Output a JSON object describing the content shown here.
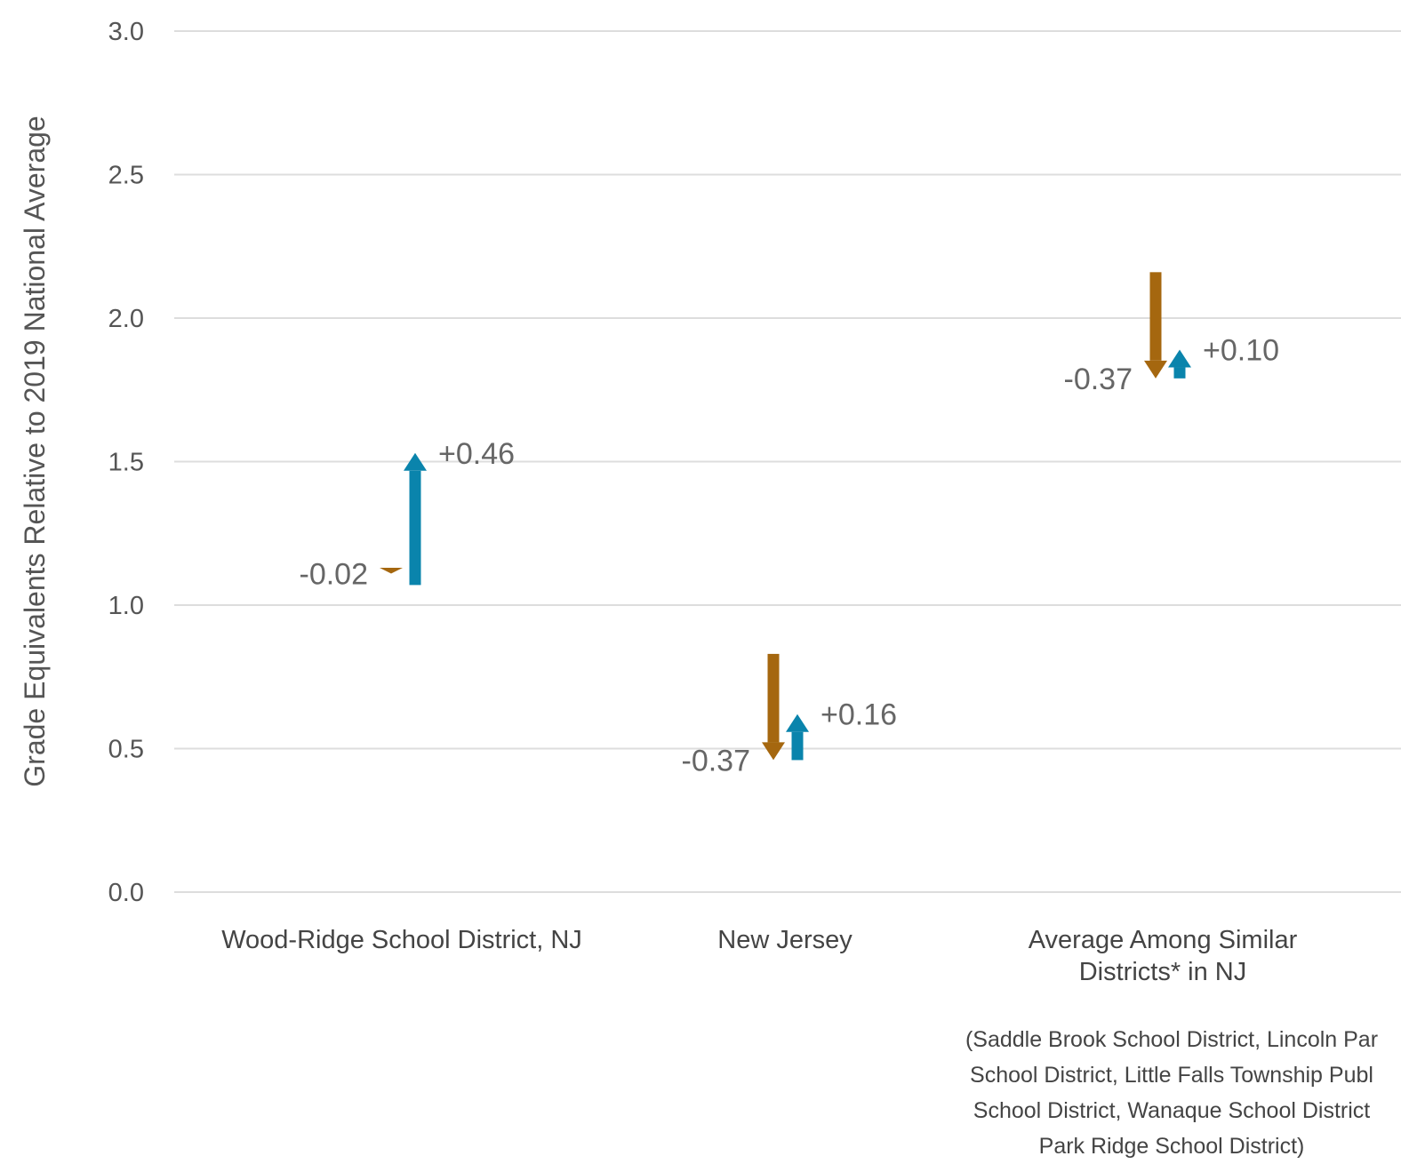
{
  "chart_data": {
    "type": "arrow",
    "ylabel": "Grade Equivalents Relative to 2019 National Average",
    "ylim": [
      0,
      3
    ],
    "yticks": [
      0,
      0.5,
      1,
      1.5,
      2,
      2.5,
      3
    ],
    "ytick_labels": [
      "0.0",
      "0.5",
      "1.0",
      "1.5",
      "2.0",
      "2.5",
      "3.0"
    ],
    "grid": true,
    "colors": {
      "decline": "#A5670F",
      "gain": "#0A84AC",
      "grid": "#dddddd"
    },
    "categories": [
      {
        "label_lines": [
          "Wood-Ridge School District, NJ"
        ],
        "decline": {
          "from": 1.13,
          "to": 1.11,
          "label": "-0.02"
        },
        "gain": {
          "from": 1.07,
          "to": 1.53,
          "label": "+0.46"
        }
      },
      {
        "label_lines": [
          "New Jersey"
        ],
        "decline": {
          "from": 0.83,
          "to": 0.46,
          "label": "-0.37"
        },
        "gain": {
          "from": 0.46,
          "to": 0.62,
          "label": "+0.16"
        }
      },
      {
        "label_lines": [
          "Average Among Similar",
          "Districts* in NJ"
        ],
        "decline": {
          "from": 2.16,
          "to": 1.79,
          "label": "-0.37"
        },
        "gain": {
          "from": 1.79,
          "to": 1.89,
          "label": "+0.10"
        }
      }
    ],
    "footnote_lines": [
      "(Saddle Brook School District, Lincoln Par",
      "School District, Little Falls Township Publ",
      "School District, Wanaque School District",
      "Park Ridge School District)"
    ]
  }
}
